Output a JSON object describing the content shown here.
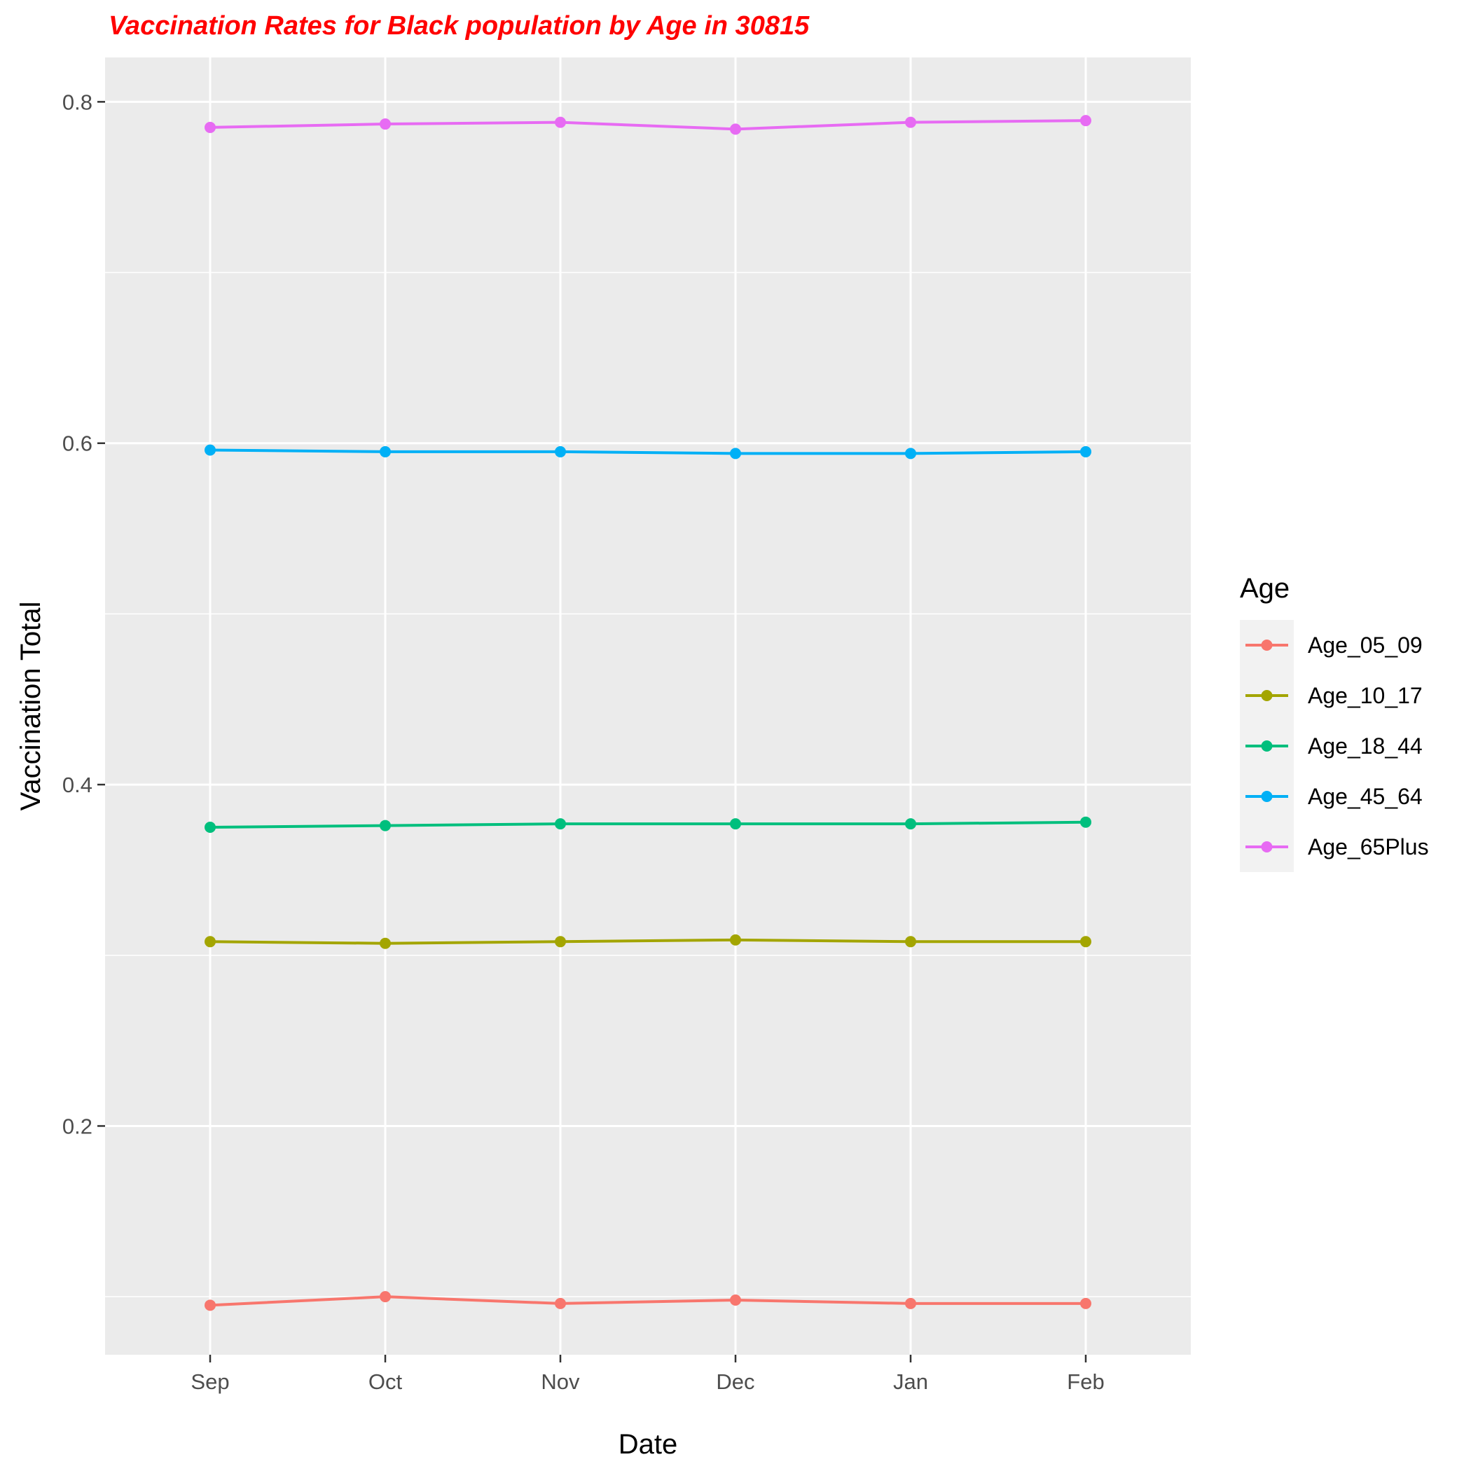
{
  "chart_data": {
    "type": "line",
    "title": "Vaccination Rates for Black population by Age in 30815",
    "title_color": "#ff0000",
    "xlabel": "Date",
    "ylabel": "Vaccination Total",
    "x": [
      "Sep",
      "Oct",
      "Nov",
      "Dec",
      "Jan",
      "Feb"
    ],
    "y_ticks": [
      "0.2",
      "0.4",
      "0.6",
      "0.8"
    ],
    "ylim": [
      0.066,
      0.826
    ],
    "grid": true,
    "legend_title": "Age",
    "legend_position": "right",
    "series": [
      {
        "name": "Age_05_09",
        "color": "#F8766D",
        "values": [
          0.095,
          0.1,
          0.096,
          0.098,
          0.096,
          0.096
        ]
      },
      {
        "name": "Age_10_17",
        "color": "#A3A500",
        "values": [
          0.308,
          0.307,
          0.308,
          0.309,
          0.308,
          0.308
        ]
      },
      {
        "name": "Age_18_44",
        "color": "#00BF7D",
        "values": [
          0.375,
          0.376,
          0.377,
          0.377,
          0.377,
          0.378
        ]
      },
      {
        "name": "Age_45_64",
        "color": "#00B0F6",
        "values": [
          0.596,
          0.595,
          0.595,
          0.594,
          0.594,
          0.595
        ]
      },
      {
        "name": "Age_65Plus",
        "color": "#E76BF3",
        "values": [
          0.785,
          0.787,
          0.788,
          0.784,
          0.788,
          0.789
        ]
      }
    ]
  }
}
